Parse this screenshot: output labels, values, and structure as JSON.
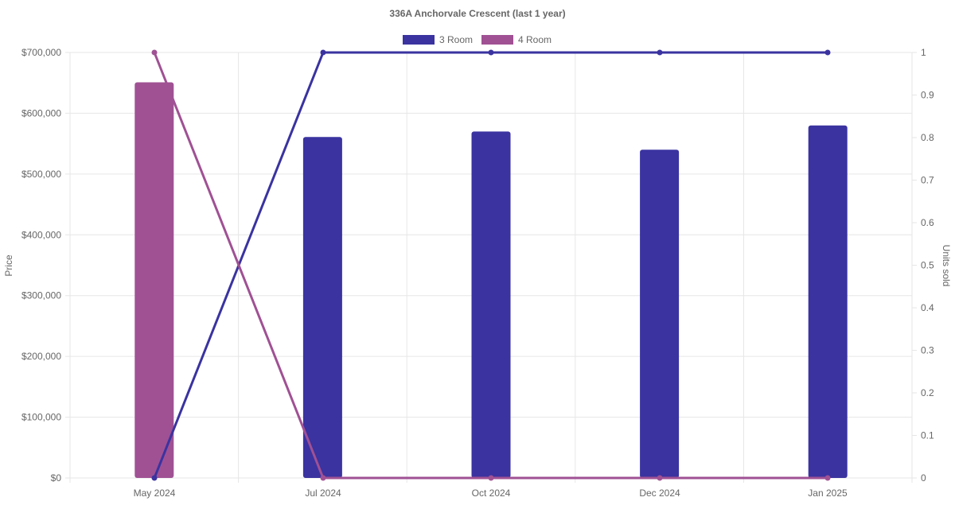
{
  "chart_data": {
    "type": "bar",
    "title": "336A Anchorvale Crescent (last 1 year)",
    "categories": [
      "May 2024",
      "Jul 2024",
      "Oct 2024",
      "Dec 2024",
      "Jan 2025"
    ],
    "y_left": {
      "label": "Price",
      "ylim": [
        0,
        700000
      ],
      "ticks": [
        0,
        100000,
        200000,
        300000,
        400000,
        500000,
        600000,
        700000
      ],
      "tick_labels": [
        "$0",
        "$100,000",
        "$200,000",
        "$300,000",
        "$400,000",
        "$500,000",
        "$600,000",
        "$700,000"
      ]
    },
    "y_right": {
      "label": "Units sold",
      "ylim": [
        0,
        1
      ],
      "ticks": [
        0,
        0.1,
        0.2,
        0.3,
        0.4,
        0.5,
        0.6,
        0.7,
        0.8,
        0.9,
        1
      ],
      "tick_labels": [
        "0",
        "0.1",
        "0.2",
        "0.3",
        "0.4",
        "0.5",
        "0.6",
        "0.7",
        "0.8",
        "0.9",
        "1"
      ]
    },
    "legend": {
      "position": "top",
      "entries": [
        {
          "name": "3 Room",
          "color": "#3a33a0"
        },
        {
          "name": "4 Room",
          "color": "#a05194"
        }
      ]
    },
    "series": [
      {
        "name": "3 Room",
        "kind": "bar",
        "axis": "left",
        "color": "#3a33a0",
        "values": [
          null,
          561000,
          570000,
          540000,
          580000
        ]
      },
      {
        "name": "4 Room",
        "kind": "bar",
        "axis": "left",
        "color": "#a05194",
        "values": [
          651000,
          null,
          null,
          null,
          null
        ]
      },
      {
        "name": "3 Room",
        "kind": "line",
        "axis": "right",
        "color": "#3a33a0",
        "values": [
          0,
          1,
          1,
          1,
          1
        ]
      },
      {
        "name": "4 Room",
        "kind": "line",
        "axis": "right",
        "color": "#a05194",
        "values": [
          1,
          0,
          0,
          0,
          0
        ]
      }
    ],
    "grid": true
  }
}
